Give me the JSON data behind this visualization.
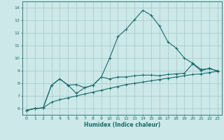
{
  "xlabel": "Humidex (Indice chaleur)",
  "bg_color": "#cce8e8",
  "grid_color": "#aacccc",
  "line_color": "#1a6b6b",
  "xlim": [
    -0.5,
    23.5
  ],
  "ylim": [
    5.5,
    14.5
  ],
  "xticks": [
    0,
    1,
    2,
    3,
    4,
    5,
    6,
    7,
    8,
    9,
    10,
    11,
    12,
    13,
    14,
    15,
    16,
    17,
    18,
    19,
    20,
    21,
    22,
    23
  ],
  "yticks": [
    6,
    7,
    8,
    9,
    10,
    11,
    12,
    13,
    14
  ],
  "line1_x": [
    0,
    1,
    2,
    3,
    4,
    5,
    6,
    7,
    8,
    9,
    10,
    11,
    12,
    13,
    14,
    15,
    16,
    17,
    18,
    19,
    20,
    21,
    22,
    23
  ],
  "line1_y": [
    5.85,
    6.0,
    6.05,
    7.85,
    8.35,
    7.85,
    7.2,
    7.65,
    7.85,
    8.5,
    10.0,
    11.7,
    12.3,
    13.05,
    13.8,
    13.4,
    12.55,
    11.3,
    10.8,
    10.0,
    9.6,
    9.1,
    9.15,
    9.0
  ],
  "line2_x": [
    0,
    1,
    2,
    3,
    4,
    5,
    6,
    7,
    8,
    9,
    10,
    11,
    12,
    13,
    14,
    15,
    16,
    17,
    18,
    19,
    20,
    21,
    22,
    23
  ],
  "line2_y": [
    5.85,
    6.0,
    6.05,
    7.85,
    8.35,
    7.85,
    7.9,
    7.65,
    7.85,
    8.5,
    8.35,
    8.5,
    8.5,
    8.6,
    8.65,
    8.65,
    8.6,
    8.7,
    8.75,
    8.8,
    9.55,
    9.0,
    9.2,
    8.95
  ],
  "line3_x": [
    0,
    1,
    2,
    3,
    4,
    5,
    6,
    7,
    8,
    9,
    10,
    11,
    12,
    13,
    14,
    15,
    16,
    17,
    18,
    19,
    20,
    21,
    22,
    23
  ],
  "line3_y": [
    5.85,
    6.0,
    6.05,
    6.5,
    6.7,
    6.85,
    7.0,
    7.15,
    7.3,
    7.45,
    7.6,
    7.75,
    7.9,
    8.0,
    8.1,
    8.2,
    8.3,
    8.4,
    8.5,
    8.6,
    8.7,
    8.75,
    8.85,
    8.95
  ]
}
